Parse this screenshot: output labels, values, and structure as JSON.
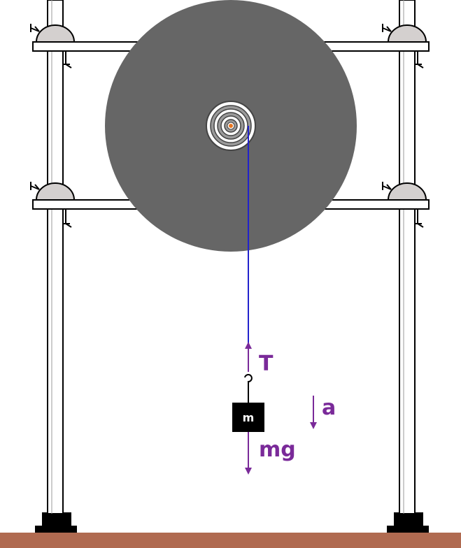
{
  "labels": {
    "tension": "T",
    "weight": "mg",
    "acceleration": "a",
    "mass": "m"
  },
  "colors": {
    "disk": "#666666",
    "string": "#2222cc",
    "arrow": "#7a2a99",
    "label": "#7a2a99",
    "floor": "#b06a50",
    "clamp": "#d4d0cf",
    "mass_block": "#000000",
    "axle_dot": "#e87722"
  }
}
